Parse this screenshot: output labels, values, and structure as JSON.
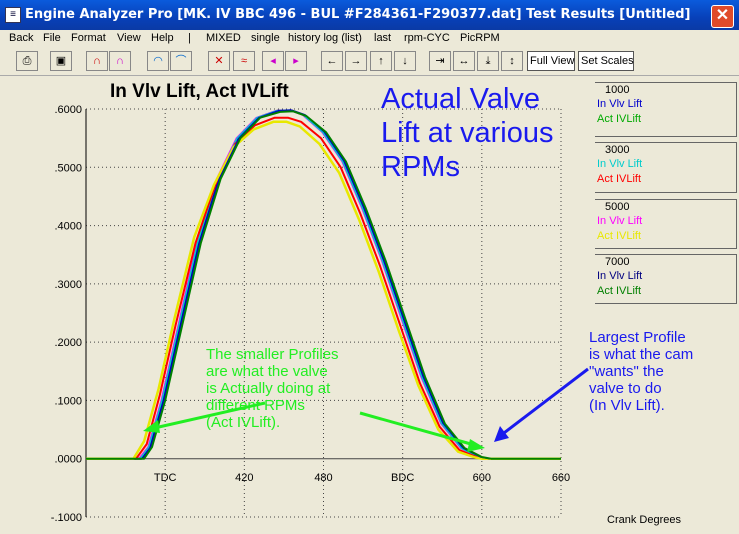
{
  "window": {
    "title": "Engine Analyzer Pro [MK. IV BBC 496 - BUL #F284361-F290377.dat]     Test Results [Untitled]",
    "close_glyph": "✕",
    "app_icon": "document-icon"
  },
  "menu": [
    "Back",
    "File",
    "Format",
    "View",
    "Help",
    "|",
    "MIXED",
    "single",
    "history log (list)",
    "last",
    "rpm-CYC",
    "PicRPM"
  ],
  "toolbar": {
    "icons": [
      "print-icon",
      "screen-icon",
      "curve-icon",
      "curve-compare-icon",
      "area-icon",
      "line-icon",
      "cross-icon",
      "multi-curve-icon",
      "prev-icon",
      "next-icon",
      "left-icon",
      "right-icon",
      "up-icon",
      "down-icon",
      "compress-h-icon",
      "expand-h-icon",
      "compress-v-icon",
      "expand-v-icon"
    ],
    "full_view_label": "Full View",
    "set_scales_label": "Set Scales"
  },
  "chart_data": {
    "type": "line",
    "title": "In Vlv Lift, Act IVLift",
    "xlabel": "Crank Degrees",
    "ylabel": "",
    "xlim": [
      300,
      660
    ],
    "ylim": [
      -0.1,
      0.6
    ],
    "x_ticks": [
      {
        "value": 360,
        "label": "TDC"
      },
      {
        "value": 420,
        "label": "420"
      },
      {
        "value": 480,
        "label": "480"
      },
      {
        "value": 540,
        "label": "BDC"
      },
      {
        "value": 600,
        "label": "600"
      },
      {
        "value": 660,
        "label": "660"
      }
    ],
    "y_ticks": [
      {
        "value": 0.6,
        "label": ".6000"
      },
      {
        "value": 0.5,
        "label": ".5000"
      },
      {
        "value": 0.4,
        "label": ".4000"
      },
      {
        "value": 0.3,
        "label": ".3000"
      },
      {
        "value": 0.2,
        "label": ".2000"
      },
      {
        "value": 0.1,
        "label": ".1000"
      },
      {
        "value": 0.0,
        "label": ".0000"
      },
      {
        "value": -0.1,
        "label": "-.1000"
      }
    ],
    "grid": true,
    "legend_position": "right",
    "legend_groups": [
      {
        "rpm": "1000",
        "series": [
          {
            "name": "In Vlv Lift",
            "color": "#0000cc"
          },
          {
            "name": "Act IVLift",
            "color": "#00aa00"
          }
        ]
      },
      {
        "rpm": "3000",
        "series": [
          {
            "name": "In Vlv Lift",
            "color": "#00cccc"
          },
          {
            "name": "Act IVLift",
            "color": "#ff0000"
          }
        ]
      },
      {
        "rpm": "5000",
        "series": [
          {
            "name": "In Vlv Lift",
            "color": "#ff00ff"
          },
          {
            "name": "Act IVLift",
            "color": "#e8e800"
          }
        ]
      },
      {
        "rpm": "7000",
        "series": [
          {
            "name": "In Vlv Lift",
            "color": "#000080"
          },
          {
            "name": "Act IVLift",
            "color": "#008000"
          }
        ]
      }
    ],
    "series": [
      {
        "color": "#000080",
        "width": 2,
        "points": [
          [
            300,
            0
          ],
          [
            342,
            0
          ],
          [
            348,
            0.02
          ],
          [
            358,
            0.1
          ],
          [
            370,
            0.22
          ],
          [
            385,
            0.37
          ],
          [
            400,
            0.48
          ],
          [
            415,
            0.55
          ],
          [
            430,
            0.585
          ],
          [
            445,
            0.597
          ],
          [
            455,
            0.598
          ],
          [
            465,
            0.59
          ],
          [
            480,
            0.56
          ],
          [
            495,
            0.51
          ],
          [
            510,
            0.43
          ],
          [
            525,
            0.34
          ],
          [
            540,
            0.24
          ],
          [
            555,
            0.14
          ],
          [
            570,
            0.06
          ],
          [
            585,
            0.018
          ],
          [
            598,
            0.003
          ],
          [
            605,
            0
          ],
          [
            660,
            0
          ]
        ]
      },
      {
        "color": "#ff00ff",
        "width": 1.5,
        "points": [
          [
            300,
            0
          ],
          [
            340,
            0
          ],
          [
            347,
            0.02
          ],
          [
            357,
            0.1
          ],
          [
            369,
            0.22
          ],
          [
            384,
            0.37
          ],
          [
            399,
            0.48
          ],
          [
            414,
            0.55
          ],
          [
            429,
            0.585
          ],
          [
            444,
            0.597
          ],
          [
            454,
            0.598
          ],
          [
            464,
            0.59
          ],
          [
            479,
            0.56
          ],
          [
            494,
            0.51
          ],
          [
            509,
            0.43
          ],
          [
            524,
            0.34
          ],
          [
            539,
            0.24
          ],
          [
            554,
            0.14
          ],
          [
            569,
            0.06
          ],
          [
            584,
            0.018
          ],
          [
            597,
            0.003
          ],
          [
            604,
            0
          ],
          [
            660,
            0
          ]
        ]
      },
      {
        "color": "#00cccc",
        "width": 1.5,
        "points": [
          [
            300,
            0
          ],
          [
            341,
            0
          ],
          [
            347.5,
            0.02
          ],
          [
            357.5,
            0.1
          ],
          [
            369.5,
            0.22
          ],
          [
            384.5,
            0.37
          ],
          [
            399.5,
            0.48
          ],
          [
            414.5,
            0.55
          ],
          [
            429.5,
            0.585
          ],
          [
            444.5,
            0.597
          ],
          [
            454.5,
            0.598
          ],
          [
            464.5,
            0.59
          ],
          [
            479.5,
            0.56
          ],
          [
            494.5,
            0.51
          ],
          [
            509.5,
            0.43
          ],
          [
            524.5,
            0.34
          ],
          [
            539.5,
            0.24
          ],
          [
            554.5,
            0.14
          ],
          [
            569.5,
            0.06
          ],
          [
            584.5,
            0.018
          ],
          [
            597.5,
            0.003
          ],
          [
            604.5,
            0
          ],
          [
            660,
            0
          ]
        ]
      },
      {
        "color": "#ff0000",
        "width": 2,
        "points": [
          [
            300,
            0
          ],
          [
            338,
            0
          ],
          [
            346,
            0.025
          ],
          [
            356,
            0.11
          ],
          [
            368,
            0.23
          ],
          [
            383,
            0.37
          ],
          [
            398,
            0.47
          ],
          [
            413,
            0.54
          ],
          [
            428,
            0.572
          ],
          [
            443,
            0.585
          ],
          [
            453,
            0.585
          ],
          [
            463,
            0.578
          ],
          [
            478,
            0.55
          ],
          [
            493,
            0.5
          ],
          [
            508,
            0.42
          ],
          [
            523,
            0.33
          ],
          [
            538,
            0.23
          ],
          [
            553,
            0.13
          ],
          [
            568,
            0.055
          ],
          [
            583,
            0.015
          ],
          [
            596,
            0.003
          ],
          [
            602,
            0
          ],
          [
            660,
            0
          ]
        ]
      },
      {
        "color": "#e8e800",
        "width": 2.5,
        "points": [
          [
            300,
            0
          ],
          [
            336,
            0
          ],
          [
            344,
            0.03
          ],
          [
            355,
            0.12
          ],
          [
            367,
            0.24
          ],
          [
            382,
            0.38
          ],
          [
            397,
            0.47
          ],
          [
            412,
            0.535
          ],
          [
            427,
            0.565
          ],
          [
            442,
            0.578
          ],
          [
            452,
            0.578
          ],
          [
            462,
            0.57
          ],
          [
            477,
            0.54
          ],
          [
            492,
            0.49
          ],
          [
            507,
            0.41
          ],
          [
            522,
            0.32
          ],
          [
            537,
            0.22
          ],
          [
            552,
            0.125
          ],
          [
            567,
            0.05
          ],
          [
            582,
            0.012
          ],
          [
            595,
            0.002
          ],
          [
            600,
            0
          ],
          [
            660,
            0
          ]
        ]
      },
      {
        "color": "#0000cc",
        "width": 1.5,
        "points": [
          [
            300,
            0
          ],
          [
            343,
            0
          ],
          [
            349,
            0.02
          ],
          [
            359,
            0.1
          ],
          [
            371,
            0.22
          ],
          [
            386,
            0.37
          ],
          [
            401,
            0.48
          ],
          [
            416,
            0.55
          ],
          [
            431,
            0.585
          ],
          [
            446,
            0.597
          ],
          [
            456,
            0.598
          ],
          [
            466,
            0.59
          ],
          [
            481,
            0.56
          ],
          [
            496,
            0.51
          ],
          [
            511,
            0.43
          ],
          [
            526,
            0.34
          ],
          [
            541,
            0.24
          ],
          [
            556,
            0.14
          ],
          [
            571,
            0.06
          ],
          [
            586,
            0.018
          ],
          [
            599,
            0.003
          ],
          [
            606,
            0
          ],
          [
            660,
            0
          ]
        ]
      },
      {
        "color": "#008000",
        "width": 2,
        "points": [
          [
            300,
            0
          ],
          [
            344,
            0
          ],
          [
            350,
            0.02
          ],
          [
            360,
            0.1
          ],
          [
            372,
            0.22
          ],
          [
            387,
            0.37
          ],
          [
            402,
            0.48
          ],
          [
            417,
            0.55
          ],
          [
            432,
            0.585
          ],
          [
            447,
            0.595
          ],
          [
            457,
            0.596
          ],
          [
            467,
            0.588
          ],
          [
            482,
            0.56
          ],
          [
            497,
            0.51
          ],
          [
            512,
            0.43
          ],
          [
            527,
            0.34
          ],
          [
            542,
            0.24
          ],
          [
            557,
            0.14
          ],
          [
            572,
            0.06
          ],
          [
            587,
            0.018
          ],
          [
            600,
            0.003
          ],
          [
            607,
            0
          ],
          [
            660,
            0
          ]
        ]
      }
    ],
    "annotations": [
      {
        "text": "Actual Valve\nLift at various\nRPMs",
        "color": "#1a1aee"
      },
      {
        "text": "The smaller Profiles\nare what the valve\nis Actually doing at\ndifferent RPMs\n(Act IVLift).",
        "color": "#22ee22"
      },
      {
        "text": "Largest Profile\nis what the cam\n\"wants\" the\nvalve to do\n(In Vlv Lift).",
        "color": "#1a1aee"
      }
    ]
  }
}
